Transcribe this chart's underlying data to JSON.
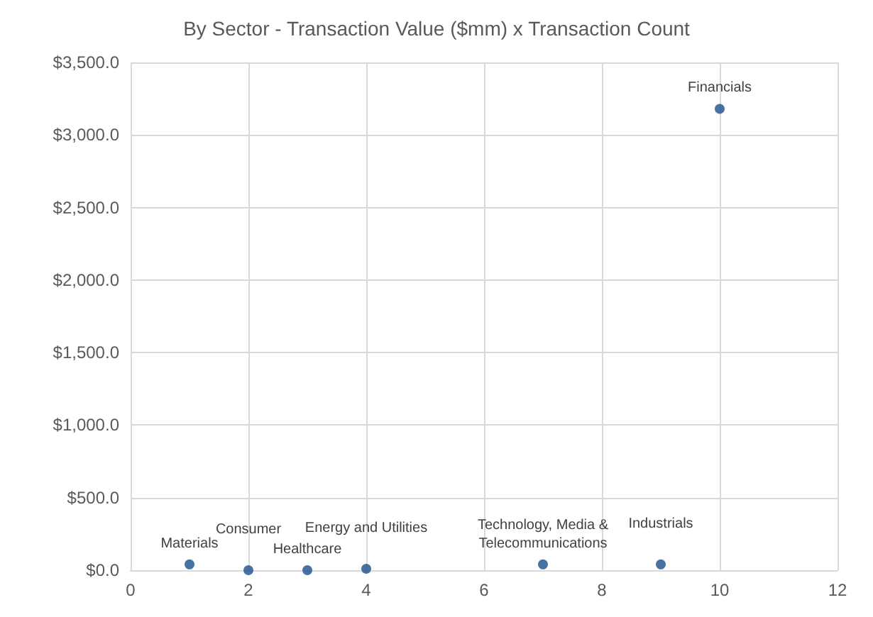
{
  "chart_data": {
    "type": "scatter",
    "title": "By Sector - Transaction Value ($mm) x Transaction Count",
    "x": [
      1,
      2,
      3,
      4,
      7,
      9,
      10
    ],
    "values": [
      40,
      0,
      0,
      10,
      40,
      40,
      3180
    ],
    "color": "#1a4f8b",
    "marker": "circle",
    "xlim": [
      0,
      12
    ],
    "xticks": [
      0,
      2,
      4,
      6,
      8,
      10,
      12
    ],
    "ylim": [
      0,
      3500
    ],
    "yticks": [
      {
        "value": 0,
        "label": "$0.0"
      },
      {
        "value": 500,
        "label": "$500.0"
      },
      {
        "value": 1000,
        "label": "$1,000.0"
      },
      {
        "value": 1500,
        "label": "$1,500.0"
      },
      {
        "value": 2000,
        "label": "$2,000.0"
      },
      {
        "value": 2500,
        "label": "$2,500.0"
      },
      {
        "value": 3000,
        "label": "$3,000.0"
      },
      {
        "value": 3500,
        "label": "$3,500.0"
      }
    ],
    "grid": true,
    "annotations": [
      {
        "text": "Materials",
        "x": 1,
        "y": 40
      },
      {
        "text": "Consumer",
        "x": 2,
        "y": 0
      },
      {
        "text": "Healthcare",
        "x": 3,
        "y": 0
      },
      {
        "text": "Energy and Utilities",
        "x": 4,
        "y": 10
      },
      {
        "text": "Technology, Media & Telecommunications",
        "x": 7,
        "y": 40
      },
      {
        "text": "Industrials",
        "x": 9,
        "y": 40
      },
      {
        "text": "Financials",
        "x": 10,
        "y": 3180
      }
    ]
  }
}
